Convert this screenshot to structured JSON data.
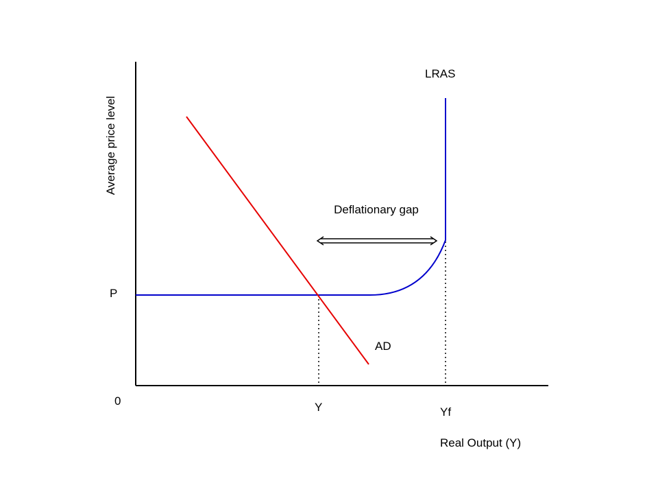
{
  "axes": {
    "y_label": "Average price level",
    "x_label": "Real Output (Y)",
    "origin_label": "0"
  },
  "levels": {
    "price_label": "P",
    "output_label": "Y",
    "full_output_label": "Yf"
  },
  "curves": {
    "lras_label": "LRAS",
    "ad_label": "AD",
    "lras_color": "#0000cc",
    "ad_color": "#e60000"
  },
  "gap": {
    "label": "Deflationary gap"
  }
}
